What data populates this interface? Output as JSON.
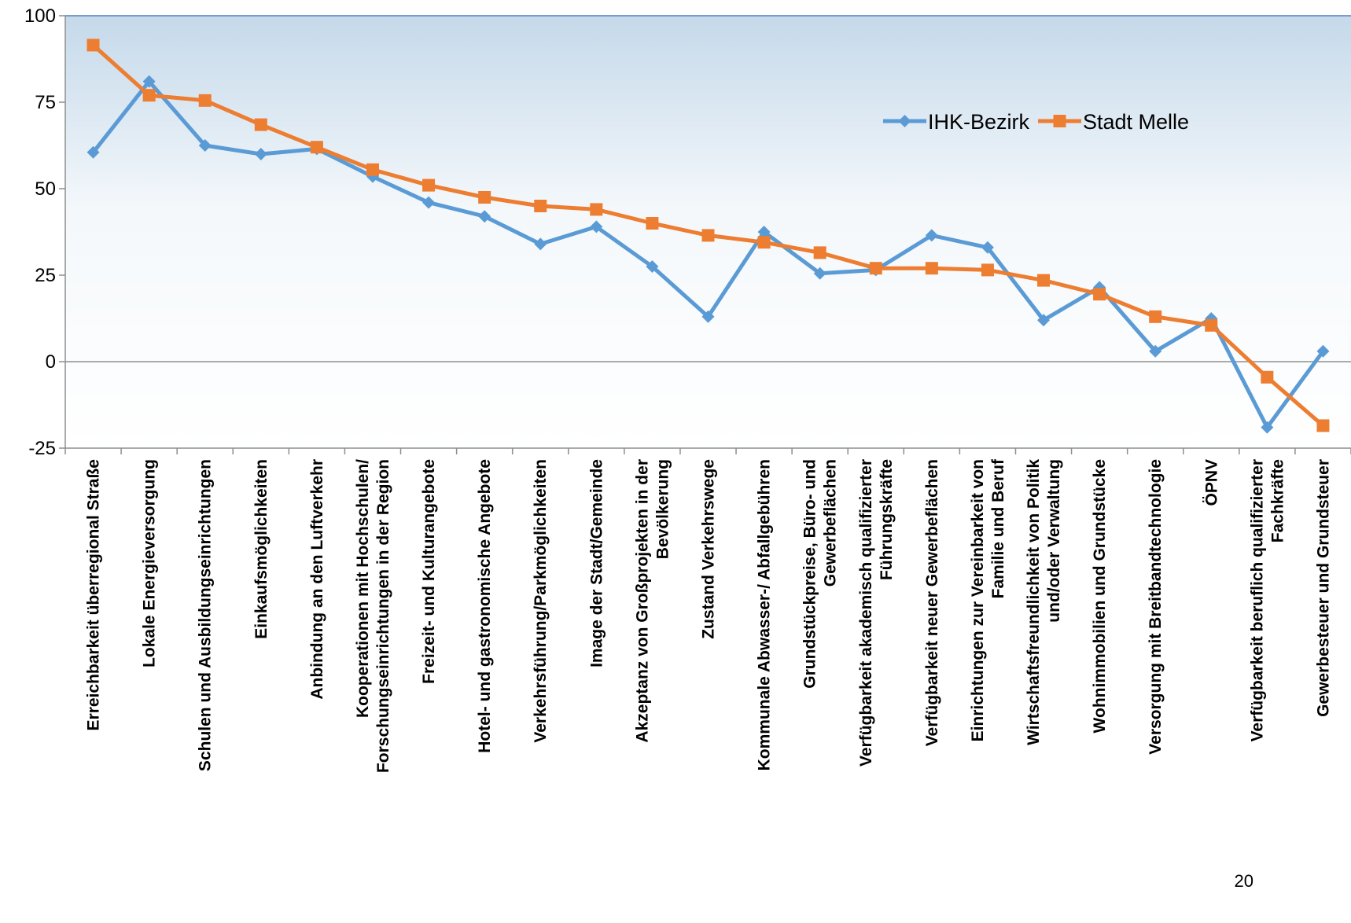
{
  "chart_data": {
    "type": "line",
    "title": "",
    "xlabel": "",
    "ylabel": "",
    "ylim": [
      -25,
      100
    ],
    "yticks": [
      -25,
      0,
      25,
      50,
      75,
      100
    ],
    "grid": false,
    "legend_position": "top-right",
    "categories": [
      "Erreichbarkeit überregional Straße",
      "Lokale Energieversorgung",
      "Schulen und Ausbildungseinrichtungen",
      "Einkaufsmöglichkeiten",
      "Anbindung an den Luftverkehr",
      "Kooperationen mit Hochschulen/ Forschungseinrichtungen in der Region",
      "Freizeit- und Kulturangebote",
      "Hotel- und gastronomische Angebote",
      "Verkehrsführung/Parkmöglichkeiten",
      "Image der Stadt/Gemeinde",
      "Akzeptanz von Großprojekten in der Bevölkerung",
      "Zustand Verkehrswege",
      "Kommunale Abwasser-/ Abfallgebühren",
      "Grundstückpreise, Büro- und Gewerbeflächen",
      "Verfügbarkeit akademisch qualifizierter Führungskräfte",
      "Verfügbarkeit neuer Gewerbeflächen",
      "Einrichtungen zur Vereinbarkeit von Familie und Beruf",
      "Wirtschaftsfreundlichkeit von Politik und/oder Verwaltung",
      "Wohnimmobilien und Grundstücke",
      "Versorgung mit Breitbandtechnologie",
      "ÖPNV",
      "Verfügbarkeit beruflich qualifizierter Fachkräfte",
      "Gewerbesteuer und Grundsteuer"
    ],
    "category_lines": [
      [
        "Erreichbarkeit überregional Straße"
      ],
      [
        "Lokale Energieversorgung"
      ],
      [
        "Schulen und Ausbildungseinrichtungen"
      ],
      [
        "Einkaufsmöglichkeiten"
      ],
      [
        "Anbindung an den Luftverkehr"
      ],
      [
        "Kooperationen mit Hochschulen/",
        "Forschungseinrichtungen in der Region"
      ],
      [
        "Freizeit- und Kulturangebote"
      ],
      [
        "Hotel- und gastronomische Angebote"
      ],
      [
        "Verkehrsführung/Parkmöglichkeiten"
      ],
      [
        "Image der Stadt/Gemeinde"
      ],
      [
        "Akzeptanz von Großprojekten in der",
        "Bevölkerung"
      ],
      [
        "Zustand Verkehrswege"
      ],
      [
        "Kommunale Abwasser-/ Abfallgebühren"
      ],
      [
        "Grundstückpreise, Büro- und",
        "Gewerbeflächen"
      ],
      [
        "Verfügbarkeit akademisch qualifizierter",
        "Führungskräfte"
      ],
      [
        "Verfügbarkeit neuer Gewerbeflächen"
      ],
      [
        "Einrichtungen zur Vereinbarkeit von",
        "Familie und Beruf"
      ],
      [
        "Wirtschaftsfreundlichkeit von Politik",
        "und/oder Verwaltung"
      ],
      [
        "Wohnimmobilien und Grundstücke"
      ],
      [
        "Versorgung mit Breitbandtechnologie"
      ],
      [
        "ÖPNV"
      ],
      [
        "Verfügbarkeit beruflich qualifizierter",
        "Fachkräfte"
      ],
      [
        "Gewerbesteuer und Grundsteuer"
      ]
    ],
    "series": [
      {
        "name": "IHK-Bezirk",
        "color": "#5B9BD5",
        "marker": "diamond",
        "values": [
          60.5,
          81,
          62.5,
          60,
          61.5,
          53.5,
          46,
          42,
          34,
          39,
          27.5,
          13,
          37.5,
          25.5,
          26.5,
          36.5,
          33,
          12,
          21.5,
          3,
          12.5,
          -19,
          3
        ]
      },
      {
        "name": "Stadt Melle",
        "color": "#ED7D31",
        "marker": "square",
        "values": [
          91.5,
          77,
          75.5,
          68.5,
          62,
          55.5,
          51,
          47.5,
          45,
          44,
          40,
          36.5,
          34.5,
          31.5,
          27,
          27,
          26.5,
          23.5,
          19.5,
          13,
          10.5,
          -4.5,
          -18.5
        ]
      }
    ]
  },
  "page_number": "20"
}
